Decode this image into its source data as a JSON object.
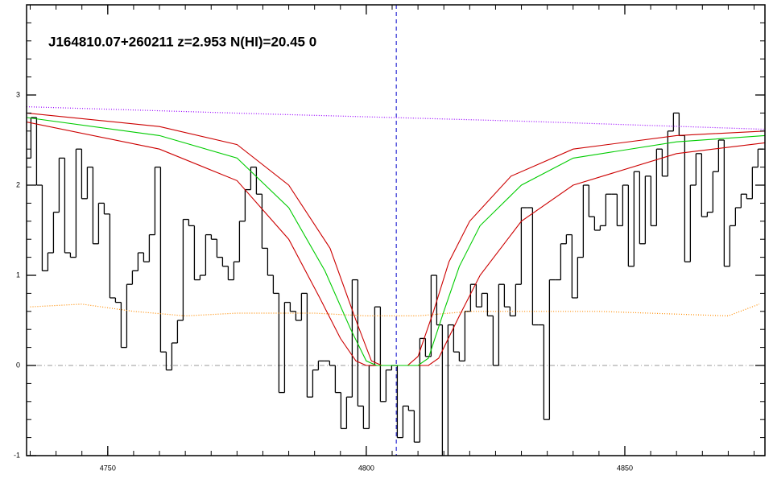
{
  "chart_data": {
    "type": "spectrum",
    "title": "J164810.07+260211 z=2.953 N(HI)=20.45 0",
    "xlim": [
      4734.3,
      4877.1
    ],
    "ylim": [
      -1,
      4
    ],
    "xticks": [
      4750,
      4800,
      4850
    ],
    "yticks": [
      -1,
      0,
      1,
      2,
      3
    ],
    "zero_line": 0,
    "marker_x": 4805.8,
    "series": [
      {
        "name": "flux",
        "color": "#000000",
        "style": "step",
        "x": [
          4734.6,
          4735.69,
          4736.78,
          4737.87,
          4738.96,
          4740.05,
          4741.14,
          4742.23,
          4743.32,
          4744.41,
          4745.5,
          4746.59,
          4747.68,
          4748.77,
          4749.86,
          4750.95,
          4752.04,
          4753.13,
          4754.22,
          4755.31,
          4756.4,
          4757.49,
          4758.58,
          4759.67,
          4760.76,
          4761.85,
          4762.94,
          4764.03,
          4765.12,
          4766.21,
          4767.3,
          4768.39,
          4769.48,
          4770.57,
          4771.66,
          4772.75,
          4773.84,
          4774.93,
          4776.02,
          4777.11,
          4778.2,
          4779.29,
          4780.38,
          4781.47,
          4782.56,
          4783.65,
          4784.74,
          4785.83,
          4786.92,
          4788.01,
          4789.1,
          4790.19,
          4791.28,
          4792.37,
          4793.46,
          4794.55,
          4795.64,
          4796.73,
          4797.82,
          4798.91,
          4800.0,
          4801.09,
          4802.18,
          4803.27,
          4804.36,
          4805.45,
          4806.54,
          4807.63,
          4808.72,
          4809.81,
          4810.9,
          4811.99,
          4813.08,
          4814.17,
          4815.26,
          4816.35,
          4817.44,
          4818.53,
          4819.62,
          4820.71,
          4821.8,
          4822.89,
          4823.98,
          4825.07,
          4826.16,
          4827.25,
          4828.34,
          4829.43,
          4830.52,
          4831.61,
          4832.7,
          4833.79,
          4834.88,
          4835.97,
          4837.06,
          4838.15,
          4839.24,
          4840.33,
          4841.42,
          4842.51,
          4843.6,
          4844.69,
          4845.78,
          4846.87,
          4847.96,
          4849.05,
          4850.14,
          4851.23,
          4852.32,
          4853.41,
          4854.5,
          4855.59,
          4856.68,
          4857.77,
          4858.86,
          4859.95,
          4861.04,
          4862.13,
          4863.22,
          4864.31,
          4865.4,
          4866.49,
          4867.58,
          4868.67,
          4869.76,
          4870.85,
          4871.94,
          4873.03,
          4874.12,
          4875.21,
          4876.3
        ],
        "values": [
          2.3,
          2.75,
          2.0,
          1.05,
          1.25,
          1.7,
          2.3,
          1.25,
          1.2,
          2.4,
          1.85,
          2.2,
          1.35,
          1.8,
          1.68,
          0.75,
          0.7,
          0.2,
          0.9,
          1.05,
          1.25,
          1.15,
          1.45,
          2.2,
          0.15,
          -0.05,
          0.25,
          0.5,
          1.62,
          1.55,
          0.95,
          1.0,
          1.45,
          1.4,
          1.2,
          1.1,
          0.95,
          1.15,
          1.6,
          1.95,
          2.2,
          1.9,
          1.3,
          1.0,
          0.8,
          -0.3,
          0.7,
          0.6,
          0.5,
          0.8,
          -0.35,
          -0.05,
          0.05,
          0.05,
          0.0,
          -0.3,
          -0.7,
          -0.35,
          0.95,
          -0.45,
          -0.7,
          0.0,
          0.65,
          -0.4,
          -0.05,
          0.0,
          -0.8,
          -0.45,
          -0.5,
          -0.85,
          0.3,
          0.1,
          1.0,
          0.45,
          -1.1,
          0.45,
          0.15,
          0.05,
          0.6,
          0.9,
          0.65,
          0.8,
          0.55,
          0.0,
          0.9,
          0.65,
          0.55,
          0.9,
          1.75,
          1.75,
          0.45,
          0.45,
          -0.6,
          0.95,
          0.95,
          1.35,
          1.45,
          0.75,
          1.2,
          2.0,
          1.65,
          1.5,
          1.55,
          1.9,
          1.9,
          1.55,
          2.0,
          1.1,
          2.15,
          1.35,
          2.1,
          1.55,
          2.4,
          2.1,
          2.6,
          2.8,
          2.55,
          1.15,
          2.0,
          2.35,
          1.65,
          1.7,
          2.15,
          2.5,
          1.1,
          1.55,
          1.75,
          1.9,
          1.85,
          2.2,
          2.4
        ]
      },
      {
        "name": "continuum",
        "color": "#9900ff",
        "style": "dotted",
        "x": [
          4734.3,
          4780,
          4830,
          4877.1
        ],
        "values": [
          2.87,
          2.79,
          2.71,
          2.62
        ]
      },
      {
        "name": "error",
        "color": "#ff8c00",
        "style": "dotted",
        "x": [
          4735,
          4745,
          4755,
          4765,
          4775,
          4790,
          4800,
          4810,
          4820,
          4830,
          4845,
          4860,
          4870,
          4876
        ],
        "values": [
          0.65,
          0.68,
          0.6,
          0.55,
          0.58,
          0.58,
          0.55,
          0.55,
          0.6,
          0.6,
          0.6,
          0.57,
          0.55,
          0.68
        ]
      },
      {
        "name": "model-upper",
        "color": "#cc0000",
        "style": "solid",
        "x": [
          4734.3,
          4760,
          4775,
          4785,
          4793,
          4798,
          4801,
          4803,
          4808,
          4810,
          4813,
          4816,
          4820,
          4828,
          4840,
          4860,
          4877.1
        ],
        "values": [
          2.8,
          2.65,
          2.45,
          2.0,
          1.3,
          0.5,
          0.05,
          0,
          0,
          0.1,
          0.6,
          1.15,
          1.6,
          2.1,
          2.4,
          2.55,
          2.6
        ]
      },
      {
        "name": "model-lower",
        "color": "#cc0000",
        "style": "solid",
        "x": [
          4734.3,
          4760,
          4775,
          4785,
          4791,
          4795,
          4798,
          4800,
          4812,
          4814,
          4818,
          4822,
          4830,
          4840,
          4860,
          4877.1
        ],
        "values": [
          2.7,
          2.4,
          2.05,
          1.4,
          0.75,
          0.3,
          0.05,
          0,
          0,
          0.08,
          0.55,
          1.0,
          1.6,
          2.0,
          2.35,
          2.47
        ]
      },
      {
        "name": "model",
        "color": "#00cc00",
        "style": "solid",
        "x": [
          4734.3,
          4760,
          4775,
          4785,
          4792,
          4797,
          4800,
          4802,
          4810,
          4812,
          4815,
          4818,
          4822,
          4830,
          4840,
          4860,
          4877.1
        ],
        "values": [
          2.75,
          2.55,
          2.3,
          1.75,
          1.05,
          0.4,
          0.05,
          0,
          0,
          0.08,
          0.6,
          1.1,
          1.55,
          2.0,
          2.3,
          2.48,
          2.55
        ]
      }
    ]
  }
}
